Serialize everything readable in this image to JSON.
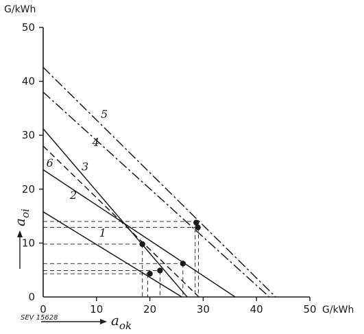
{
  "chart_data": {
    "type": "line",
    "x_unit": "G/kWh",
    "y_unit": "G/kWh",
    "xlim": [
      0,
      50
    ],
    "ylim": [
      0,
      50
    ],
    "x_ticks": [
      "0",
      "10",
      "20",
      "30",
      "40",
      "50"
    ],
    "y_ticks": [
      "0",
      "10",
      "20",
      "30",
      "40",
      "50"
    ],
    "xlabel_main": "a",
    "xlabel_sub": "ok",
    "ylabel_main": "a",
    "ylabel_sub": "oi",
    "code": "SEV 15628",
    "grid": false,
    "series": [
      {
        "name": "1",
        "style": "solid",
        "x": [
          0,
          26
        ],
        "y": [
          15.8,
          0
        ]
      },
      {
        "name": "2",
        "style": "solid",
        "x": [
          0,
          36
        ],
        "y": [
          23.6,
          0
        ]
      },
      {
        "name": "3",
        "style": "solid",
        "x": [
          0,
          27
        ],
        "y": [
          31.2,
          0
        ]
      },
      {
        "name": "4",
        "style": "dashdot",
        "x": [
          0,
          42.4
        ],
        "y": [
          38,
          0
        ]
      },
      {
        "name": "5",
        "style": "dashdot",
        "x": [
          0,
          43.6
        ],
        "y": [
          42.6,
          0
        ]
      },
      {
        "name": "6",
        "style": "dashed",
        "x": [
          0,
          29.2
        ],
        "y": [
          28,
          0
        ]
      }
    ],
    "points": [
      {
        "x": 18.6,
        "y": 9.8
      },
      {
        "x": 20.0,
        "y": 4.3
      },
      {
        "x": 21.9,
        "y": 4.9
      },
      {
        "x": 26.2,
        "y": 6.2
      },
      {
        "x": 28.7,
        "y": 13.8
      },
      {
        "x": 29.0,
        "y": 12.9
      }
    ],
    "guides": [
      {
        "x": 18.6,
        "y": 9.8
      },
      {
        "x": 19.6,
        "y": 4.3
      },
      {
        "x": 21.9,
        "y": 4.9
      },
      {
        "x": 26.2,
        "y": 6.2
      },
      {
        "x": 28.5,
        "y": 14.0
      },
      {
        "x": 29.1,
        "y": 12.9
      }
    ],
    "label_positions": [
      {
        "name": "1",
        "x": 10.5,
        "y": 11.2
      },
      {
        "name": "2",
        "x": 5.0,
        "y": 18.2
      },
      {
        "name": "3",
        "x": 7.2,
        "y": 23.5
      },
      {
        "name": "4",
        "x": 9.2,
        "y": 28.0
      },
      {
        "name": "5",
        "x": 10.8,
        "y": 33.2
      },
      {
        "name": "6",
        "x": 0.6,
        "y": 24.2
      }
    ]
  }
}
